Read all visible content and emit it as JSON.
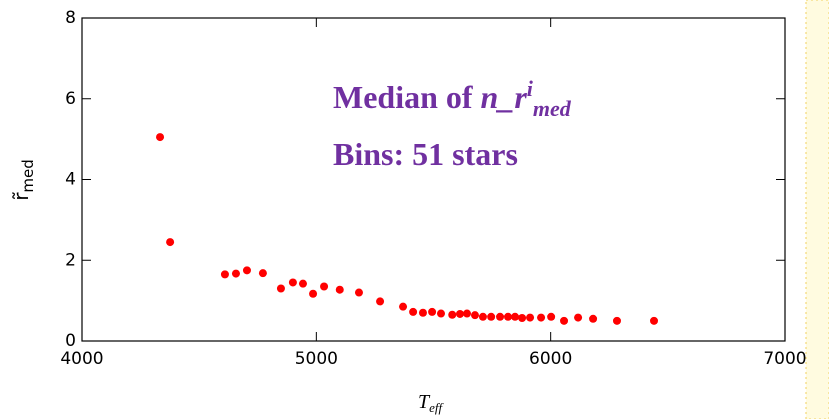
{
  "chart_data": {
    "type": "scatter",
    "x_label": {
      "main": "T",
      "sub": "eff"
    },
    "y_label": {
      "main": "r̃",
      "sub": "med"
    },
    "annotation": {
      "line1": {
        "text": "Median of ",
        "var": "n_r",
        "sup": "i",
        "sub": "med"
      },
      "line2": "Bins: 51 stars"
    },
    "color": "#ff0000",
    "x": [
      4333,
      4376,
      4610,
      4657,
      4704,
      4772,
      4849,
      4900,
      4943,
      4986,
      5033,
      5100,
      5182,
      5272,
      5370,
      5413,
      5455,
      5494,
      5532,
      5580,
      5613,
      5643,
      5677,
      5711,
      5746,
      5784,
      5818,
      5848,
      5878,
      5912,
      5959,
      6002,
      6057,
      6117,
      6181,
      6283,
      6441
    ],
    "values": [
      5.05,
      2.45,
      1.65,
      1.67,
      1.75,
      1.68,
      1.3,
      1.45,
      1.42,
      1.17,
      1.35,
      1.27,
      1.2,
      0.98,
      0.85,
      0.72,
      0.7,
      0.72,
      0.68,
      0.65,
      0.67,
      0.68,
      0.64,
      0.6,
      0.6,
      0.6,
      0.6,
      0.6,
      0.57,
      0.58,
      0.58,
      0.6,
      0.5,
      0.58,
      0.55,
      0.5,
      0.5
    ],
    "xlim": [
      4000,
      7000
    ],
    "xticks": [
      4000,
      5000,
      6000,
      7000
    ],
    "ylim": [
      0,
      8
    ],
    "yticks": [
      0,
      2,
      4,
      6,
      8
    ]
  }
}
